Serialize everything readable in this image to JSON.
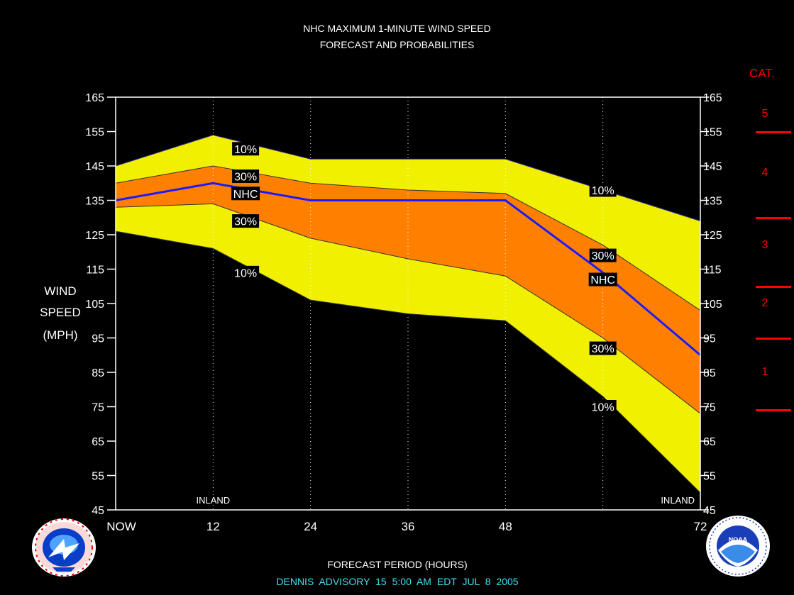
{
  "titles": {
    "line1": "NHC MAXIMUM 1-MINUTE WIND SPEED",
    "line2": "FORECAST AND PROBABILITIES"
  },
  "ylabel": [
    "WIND",
    "SPEED",
    "(MPH)"
  ],
  "xlabel": "FORECAST PERIOD (HOURS)",
  "footer": "DENNIS   ADVISORY  15 5:00 AM  EDT  JUL  8  2005",
  "category": {
    "header": "CAT.",
    "labels": [
      {
        "text": "5",
        "mid": 160
      },
      {
        "text": "4",
        "mid": 143
      },
      {
        "text": "3",
        "mid": 122
      },
      {
        "text": "2",
        "mid": 105
      },
      {
        "text": "1",
        "mid": 85
      }
    ],
    "boundaries": [
      155,
      130,
      110,
      95,
      74
    ]
  },
  "logos": {
    "left": "nws-logo",
    "right": "noaa-logo",
    "right_text": "NOAA"
  },
  "colors": {
    "outer_band": "#f0f000",
    "inner_band": "#ff8000",
    "forecast_line": "#1a1aff",
    "category": "#ff0000",
    "footer": "#40e0f0"
  },
  "chart_data": {
    "type": "area",
    "x": [
      0,
      12,
      24,
      36,
      48,
      60,
      72
    ],
    "x_tick_labels": [
      "NOW",
      "12",
      "24",
      "36",
      "48",
      "",
      "72"
    ],
    "xlim": [
      0,
      72
    ],
    "ylim": [
      45,
      165
    ],
    "y_ticks": [
      45,
      55,
      65,
      75,
      85,
      95,
      105,
      115,
      125,
      135,
      145,
      155,
      165
    ],
    "series": [
      {
        "name": "10%",
        "role": "upper10",
        "values": [
          145,
          154,
          147,
          147,
          147,
          138,
          129
        ]
      },
      {
        "name": "30%",
        "role": "upper30",
        "values": [
          140,
          145,
          140,
          138,
          137,
          122,
          103
        ]
      },
      {
        "name": "NHC",
        "role": "nhc",
        "values": [
          135,
          140,
          135,
          135,
          135,
          114,
          90
        ]
      },
      {
        "name": "30%",
        "role": "lower30",
        "values": [
          133,
          134,
          124,
          118,
          113,
          95,
          73
        ]
      },
      {
        "name": "10%",
        "role": "lower10",
        "values": [
          126,
          121,
          106,
          102,
          100,
          78,
          50
        ]
      }
    ],
    "labels": [
      {
        "text": "10%",
        "x": 16,
        "y": 150
      },
      {
        "text": "30%",
        "x": 16,
        "y": 142
      },
      {
        "text": "NHC",
        "x": 16,
        "y": 137
      },
      {
        "text": "30%",
        "x": 16,
        "y": 129
      },
      {
        "text": "10%",
        "x": 16,
        "y": 114
      },
      {
        "text": "10%",
        "x": 60,
        "y": 138
      },
      {
        "text": "30%",
        "x": 60,
        "y": 119
      },
      {
        "text": "NHC",
        "x": 60,
        "y": 112
      },
      {
        "text": "30%",
        "x": 60,
        "y": 92
      },
      {
        "text": "10%",
        "x": 60,
        "y": 75
      }
    ],
    "annotations": [
      {
        "text": "INLAND",
        "x": 12
      },
      {
        "text": "INLAND",
        "x": 72
      }
    ]
  }
}
